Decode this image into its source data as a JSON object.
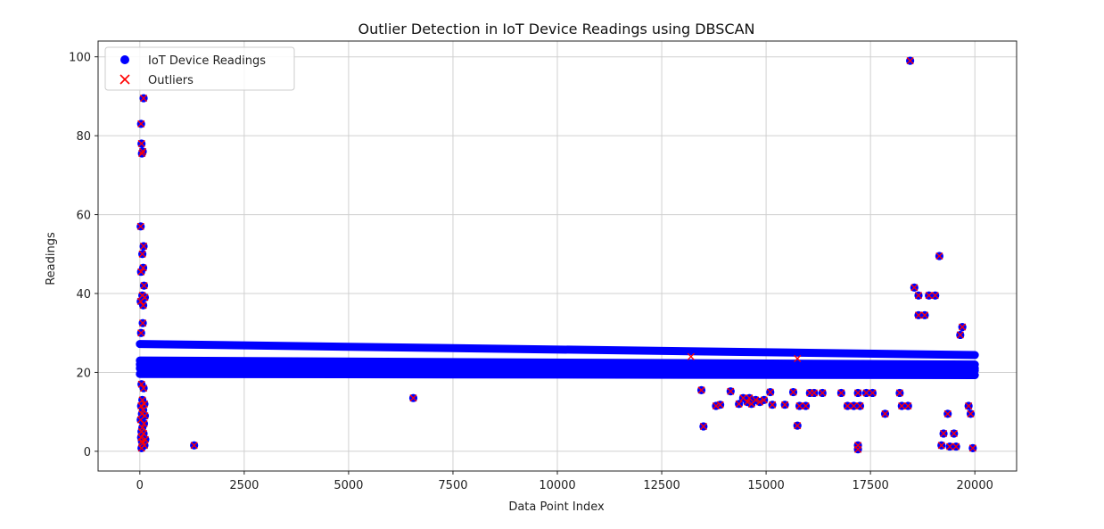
{
  "chart_data": {
    "type": "scatter",
    "title": "Outlier Detection in IoT Device Readings using DBSCAN",
    "xlabel": "Data Point Index",
    "ylabel": "Readings",
    "xlim": [
      -1000,
      21000
    ],
    "ylim": [
      -5,
      104
    ],
    "xticks": [
      0,
      2500,
      5000,
      7500,
      10000,
      12500,
      15000,
      17500,
      20000
    ],
    "yticks": [
      0,
      20,
      40,
      60,
      80,
      100
    ],
    "grid": true,
    "legend_position": "top-left",
    "colors": {
      "normal": "#0000ff",
      "outlier": "#ff0000"
    },
    "series": [
      {
        "name": "IoT Device Readings",
        "marker": "circle",
        "bands": [
          {
            "x_start": 0,
            "x_end": 20000,
            "y_start": 27.2,
            "y_end": 24.4
          },
          {
            "x_start": 0,
            "x_end": 20000,
            "y_start": 23.0,
            "y_end": 22.0
          },
          {
            "x_start": 0,
            "x_end": 20000,
            "y_start": 22.0,
            "y_end": 21.0
          },
          {
            "x_start": 0,
            "x_end": 20000,
            "y_start": 21.0,
            "y_end": 20.5
          },
          {
            "x_start": 0,
            "x_end": 20000,
            "y_start": 19.6,
            "y_end": 19.3
          }
        ],
        "points": [
          [
            30,
            83
          ],
          [
            40,
            78
          ],
          [
            70,
            76
          ],
          [
            50,
            75.5
          ],
          [
            90,
            89.5
          ],
          [
            20,
            57
          ],
          [
            90,
            52
          ],
          [
            60,
            50
          ],
          [
            80,
            46.5
          ],
          [
            30,
            45.5
          ],
          [
            100,
            42
          ],
          [
            60,
            39.5
          ],
          [
            120,
            39
          ],
          [
            20,
            38
          ],
          [
            80,
            37
          ],
          [
            70,
            32.5
          ],
          [
            30,
            30
          ],
          [
            40,
            17
          ],
          [
            90,
            16
          ],
          [
            60,
            13
          ],
          [
            110,
            12
          ],
          [
            30,
            11.5
          ],
          [
            80,
            10.5
          ],
          [
            50,
            9.5
          ],
          [
            120,
            9
          ],
          [
            20,
            8
          ],
          [
            100,
            7
          ],
          [
            60,
            6
          ],
          [
            40,
            5
          ],
          [
            90,
            4.5
          ],
          [
            30,
            3.5
          ],
          [
            130,
            3
          ],
          [
            50,
            2.5
          ],
          [
            70,
            2
          ],
          [
            110,
            1.5
          ],
          [
            40,
            0.8
          ],
          [
            1300,
            1.5
          ],
          [
            6550,
            13.5
          ],
          [
            13450,
            15.5
          ],
          [
            13500,
            6.3
          ],
          [
            13800,
            11.5
          ],
          [
            13900,
            11.8
          ],
          [
            14150,
            15.2
          ],
          [
            14350,
            12
          ],
          [
            14450,
            13.5
          ],
          [
            14550,
            12.5
          ],
          [
            14600,
            13.5
          ],
          [
            14650,
            12
          ],
          [
            14750,
            13
          ],
          [
            14850,
            12.5
          ],
          [
            14950,
            13
          ],
          [
            15100,
            15
          ],
          [
            15150,
            11.8
          ],
          [
            15450,
            11.8
          ],
          [
            15650,
            15
          ],
          [
            15750,
            6.5
          ],
          [
            15800,
            11.5
          ],
          [
            15950,
            11.5
          ],
          [
            16050,
            14.8
          ],
          [
            16150,
            14.8
          ],
          [
            16350,
            14.8
          ],
          [
            16800,
            14.8
          ],
          [
            16950,
            11.5
          ],
          [
            17100,
            11.5
          ],
          [
            17200,
            14.8
          ],
          [
            17250,
            11.5
          ],
          [
            17200,
            1.5
          ],
          [
            17200,
            0.5
          ],
          [
            17400,
            14.8
          ],
          [
            17550,
            14.8
          ],
          [
            17850,
            9.5
          ],
          [
            18200,
            14.8
          ],
          [
            18250,
            11.5
          ],
          [
            18400,
            11.5
          ],
          [
            18450,
            99
          ],
          [
            18550,
            41.5
          ],
          [
            18650,
            39.5
          ],
          [
            18650,
            34.5
          ],
          [
            18800,
            34.5
          ],
          [
            18900,
            39.5
          ],
          [
            19050,
            39.5
          ],
          [
            19150,
            49.5
          ],
          [
            19200,
            1.5
          ],
          [
            19250,
            4.5
          ],
          [
            19350,
            9.5
          ],
          [
            19400,
            1.2
          ],
          [
            19500,
            4.5
          ],
          [
            19550,
            1.2
          ],
          [
            19650,
            29.5
          ],
          [
            19700,
            31.5
          ],
          [
            19850,
            11.5
          ],
          [
            19900,
            9.5
          ],
          [
            19950,
            0.8
          ]
        ]
      },
      {
        "name": "Outliers",
        "marker": "x",
        "points": [
          [
            30,
            83
          ],
          [
            40,
            78
          ],
          [
            70,
            76
          ],
          [
            50,
            75.5
          ],
          [
            90,
            89.5
          ],
          [
            20,
            57
          ],
          [
            90,
            52
          ],
          [
            60,
            50
          ],
          [
            80,
            46.5
          ],
          [
            30,
            45.5
          ],
          [
            100,
            42
          ],
          [
            60,
            39.5
          ],
          [
            120,
            39
          ],
          [
            20,
            38
          ],
          [
            80,
            37
          ],
          [
            70,
            32.5
          ],
          [
            30,
            30
          ],
          [
            40,
            17
          ],
          [
            90,
            16
          ],
          [
            60,
            13
          ],
          [
            110,
            12
          ],
          [
            30,
            11.5
          ],
          [
            80,
            10.5
          ],
          [
            50,
            9.5
          ],
          [
            120,
            9
          ],
          [
            20,
            8
          ],
          [
            100,
            7
          ],
          [
            60,
            6
          ],
          [
            40,
            5
          ],
          [
            90,
            4.5
          ],
          [
            30,
            3.5
          ],
          [
            130,
            3
          ],
          [
            50,
            2.5
          ],
          [
            70,
            2
          ],
          [
            110,
            1.5
          ],
          [
            40,
            0.8
          ],
          [
            1300,
            1.5
          ],
          [
            6550,
            13.5
          ],
          [
            13200,
            24
          ],
          [
            15750,
            23.5
          ],
          [
            13450,
            15.5
          ],
          [
            13500,
            6.3
          ],
          [
            13800,
            11.5
          ],
          [
            13900,
            11.8
          ],
          [
            14150,
            15.2
          ],
          [
            14350,
            12
          ],
          [
            14450,
            13.5
          ],
          [
            14550,
            12.5
          ],
          [
            14600,
            13.5
          ],
          [
            14650,
            12
          ],
          [
            14750,
            13
          ],
          [
            14850,
            12.5
          ],
          [
            14950,
            13
          ],
          [
            15100,
            15
          ],
          [
            15150,
            11.8
          ],
          [
            15450,
            11.8
          ],
          [
            15650,
            15
          ],
          [
            15750,
            6.5
          ],
          [
            15800,
            11.5
          ],
          [
            15950,
            11.5
          ],
          [
            16050,
            14.8
          ],
          [
            16150,
            14.8
          ],
          [
            16350,
            14.8
          ],
          [
            16800,
            14.8
          ],
          [
            16950,
            11.5
          ],
          [
            17100,
            11.5
          ],
          [
            17200,
            14.8
          ],
          [
            17250,
            11.5
          ],
          [
            17200,
            1.5
          ],
          [
            17200,
            0.5
          ],
          [
            17400,
            14.8
          ],
          [
            17550,
            14.8
          ],
          [
            17850,
            9.5
          ],
          [
            18200,
            14.8
          ],
          [
            18250,
            11.5
          ],
          [
            18400,
            11.5
          ],
          [
            18450,
            99
          ],
          [
            18550,
            41.5
          ],
          [
            18650,
            39.5
          ],
          [
            18650,
            34.5
          ],
          [
            18800,
            34.5
          ],
          [
            18900,
            39.5
          ],
          [
            19050,
            39.5
          ],
          [
            19150,
            49.5
          ],
          [
            19200,
            1.5
          ],
          [
            19250,
            4.5
          ],
          [
            19350,
            9.5
          ],
          [
            19400,
            1.2
          ],
          [
            19500,
            4.5
          ],
          [
            19550,
            1.2
          ],
          [
            19650,
            29.5
          ],
          [
            19700,
            31.5
          ],
          [
            19850,
            11.5
          ],
          [
            19900,
            9.5
          ],
          [
            19950,
            0.8
          ]
        ]
      }
    ]
  }
}
